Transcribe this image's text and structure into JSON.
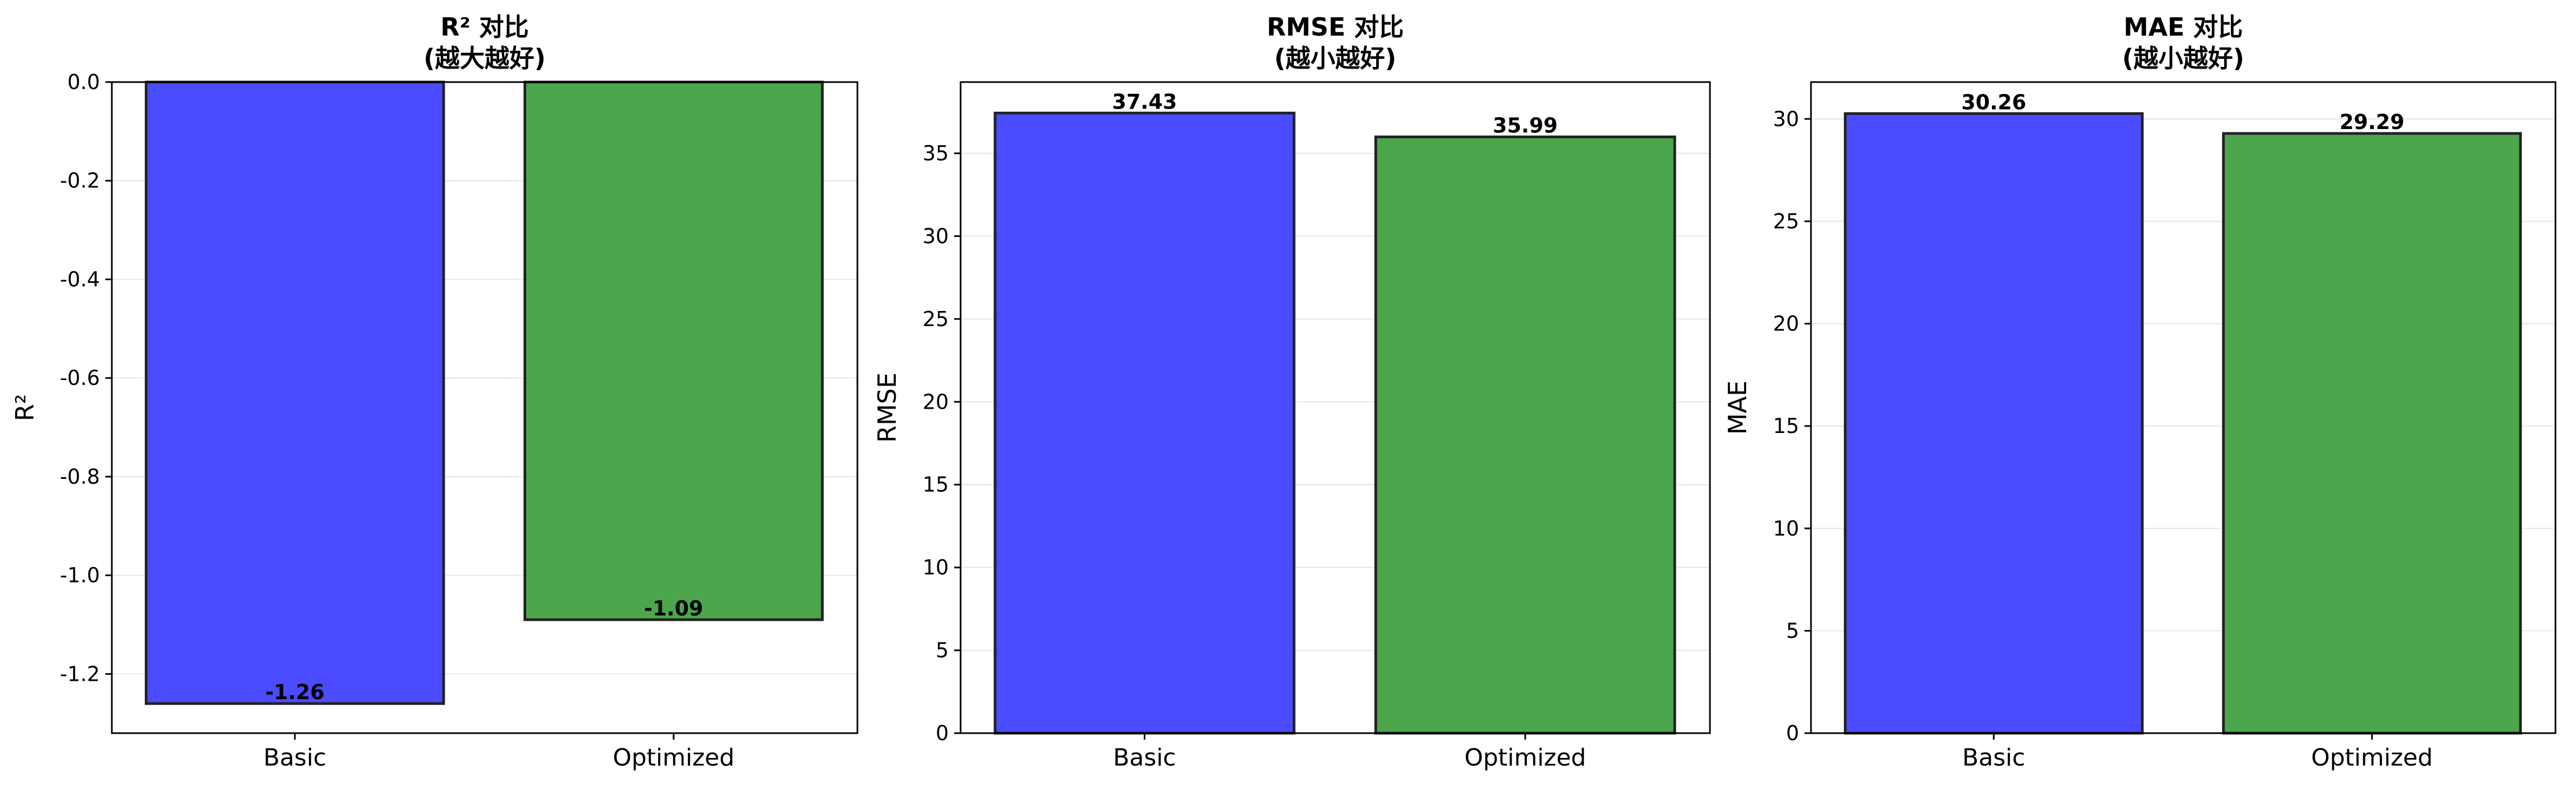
{
  "colors": {
    "bar_blue": "#4b4bff",
    "bar_green": "#4ca64c",
    "edge": "#222222",
    "grid": "#e6e6e6"
  },
  "chart_data": [
    {
      "type": "bar",
      "title": "R² 对比",
      "subtitle": "(越大越好)",
      "xlabel": "",
      "ylabel": "R²",
      "categories": [
        "Basic",
        "Optimized"
      ],
      "values": [
        -1.26,
        -1.09
      ],
      "value_labels": [
        "-1.26",
        "-1.09"
      ],
      "ylim": [
        -1.32,
        0.0
      ],
      "yticks": [
        0.0,
        -0.2,
        -0.4,
        -0.6,
        -0.8,
        -1.0,
        -1.2
      ],
      "ytick_labels": [
        "0.0",
        "-0.2",
        "-0.4",
        "-0.6",
        "-0.8",
        "-1.0",
        "-1.2"
      ],
      "grid": "y",
      "bar_colors": [
        "#4b4bff",
        "#4ca64c"
      ]
    },
    {
      "type": "bar",
      "title": "RMSE 对比",
      "subtitle": "(越小越好)",
      "xlabel": "",
      "ylabel": "RMSE",
      "categories": [
        "Basic",
        "Optimized"
      ],
      "values": [
        37.43,
        35.99
      ],
      "value_labels": [
        "37.43",
        "35.99"
      ],
      "ylim": [
        0,
        39.3
      ],
      "yticks": [
        0,
        5,
        10,
        15,
        20,
        25,
        30,
        35
      ],
      "ytick_labels": [
        "0",
        "5",
        "10",
        "15",
        "20",
        "25",
        "30",
        "35"
      ],
      "grid": "y",
      "bar_colors": [
        "#4b4bff",
        "#4ca64c"
      ]
    },
    {
      "type": "bar",
      "title": "MAE 对比",
      "subtitle": "(越小越好)",
      "xlabel": "",
      "ylabel": "MAE",
      "categories": [
        "Basic",
        "Optimized"
      ],
      "values": [
        30.26,
        29.29
      ],
      "value_labels": [
        "30.26",
        "29.29"
      ],
      "ylim": [
        0,
        31.8
      ],
      "yticks": [
        0,
        5,
        10,
        15,
        20,
        25,
        30
      ],
      "ytick_labels": [
        "0",
        "5",
        "10",
        "15",
        "20",
        "25",
        "30"
      ],
      "grid": "y",
      "bar_colors": [
        "#4b4bff",
        "#4ca64c"
      ]
    }
  ]
}
